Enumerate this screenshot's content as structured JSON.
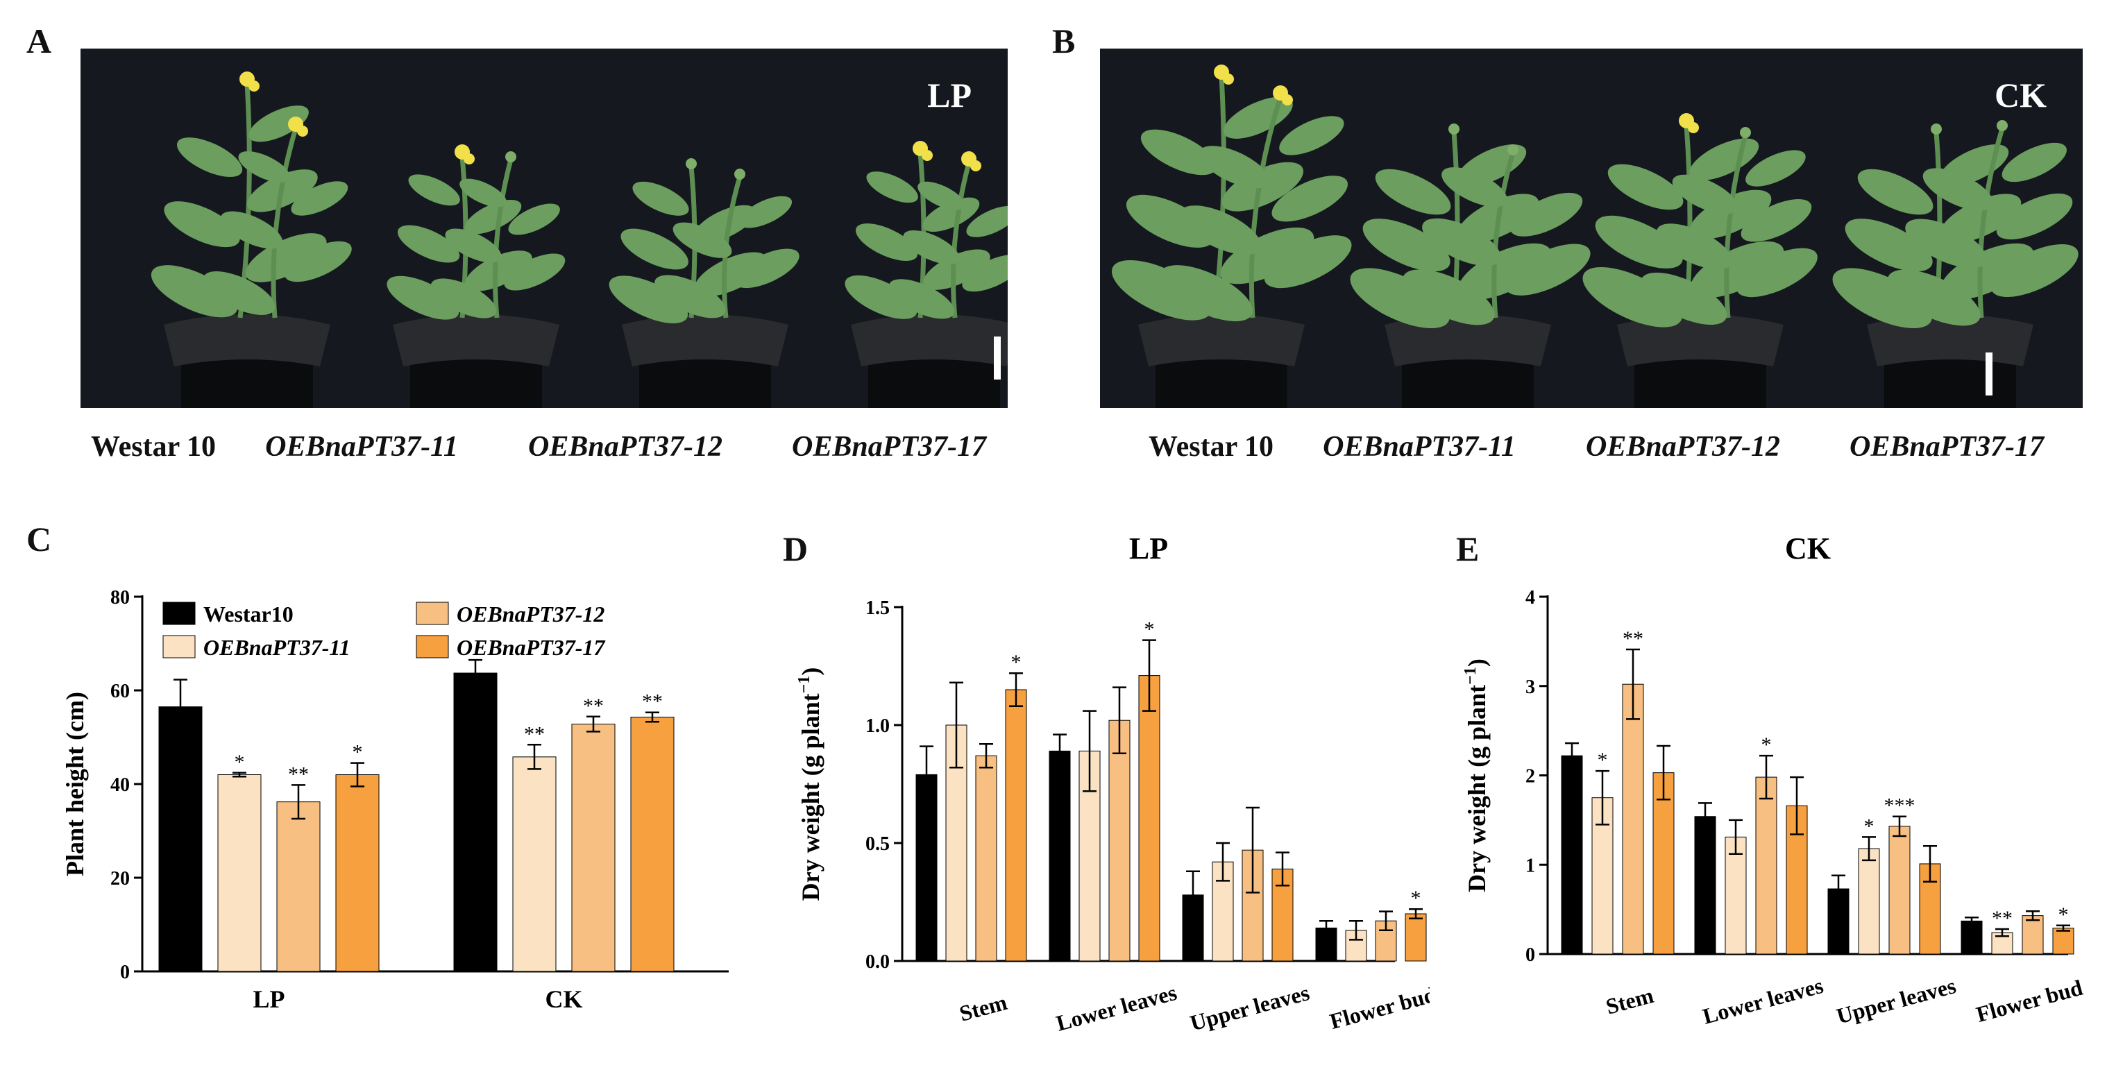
{
  "panels": {
    "a": {
      "letter": "A",
      "condition": "LP"
    },
    "b": {
      "letter": "B",
      "condition": "CK"
    },
    "c": {
      "letter": "C"
    },
    "d": {
      "letter": "D"
    },
    "e": {
      "letter": "E"
    }
  },
  "genotypes": [
    "Westar 10",
    "OEBnaPT37-11",
    "OEBnaPT37-12",
    "OEBnaPT37-17"
  ],
  "colors": {
    "Westar10": "#000000",
    "OEBnaPT37-11": "#fbe2c2",
    "OEBnaPT37-12": "#f8bf82",
    "OEBnaPT37-17": "#f7a03f",
    "photo_background": "#15191f",
    "leaf_green": "#5d8f52",
    "flower_yellow": "#f2e04b"
  },
  "chart_data": [
    {
      "id": "C",
      "type": "bar",
      "categories": [
        "LP",
        "CK"
      ],
      "ylabel": "Plant height (cm)",
      "ylim": [
        0,
        80
      ],
      "yticks": [
        0,
        20,
        40,
        60,
        80
      ],
      "legend": {
        "placement": "top",
        "entries": [
          "Westar10",
          "OEBnaPT37-11",
          "OEBnaPT37-12",
          "OEBnaPT37-17"
        ]
      },
      "series": [
        {
          "name": "Westar10",
          "values": [
            56.5,
            63.7
          ],
          "errors": [
            5.8,
            2.8
          ],
          "sig": [
            "",
            ""
          ]
        },
        {
          "name": "OEBnaPT37-11",
          "values": [
            42.0,
            45.8
          ],
          "errors": [
            0.4,
            2.6
          ],
          "sig": [
            "*",
            "**"
          ]
        },
        {
          "name": "OEBnaPT37-12",
          "values": [
            36.2,
            52.8
          ],
          "errors": [
            3.6,
            1.6
          ],
          "sig": [
            "**",
            "**"
          ]
        },
        {
          "name": "OEBnaPT37-17",
          "values": [
            42.0,
            54.3
          ],
          "errors": [
            2.5,
            1.0
          ],
          "sig": [
            "*",
            "**"
          ]
        }
      ]
    },
    {
      "id": "D",
      "type": "bar",
      "title": "LP",
      "categories": [
        "Stem",
        "Lower leaves",
        "Upper leaves",
        "Flower bud"
      ],
      "ylabel": "Dry weight (g plant−1)",
      "ylim": [
        0,
        1.5
      ],
      "yticks": [
        0.0,
        0.5,
        1.0,
        1.5
      ],
      "series": [
        {
          "name": "Westar10",
          "values": [
            0.79,
            0.89,
            0.28,
            0.14
          ],
          "errors": [
            0.12,
            0.07,
            0.1,
            0.03
          ],
          "sig": [
            "",
            "",
            "",
            ""
          ]
        },
        {
          "name": "OEBnaPT37-11",
          "values": [
            1.0,
            0.89,
            0.42,
            0.13
          ],
          "errors": [
            0.18,
            0.17,
            0.08,
            0.04
          ],
          "sig": [
            "",
            "",
            "",
            ""
          ]
        },
        {
          "name": "OEBnaPT37-12",
          "values": [
            0.87,
            1.02,
            0.47,
            0.17
          ],
          "errors": [
            0.05,
            0.14,
            0.18,
            0.04
          ],
          "sig": [
            "",
            "",
            "",
            ""
          ]
        },
        {
          "name": "OEBnaPT37-17",
          "values": [
            1.15,
            1.21,
            0.39,
            0.2
          ],
          "errors": [
            0.07,
            0.15,
            0.07,
            0.02
          ],
          "sig": [
            "*",
            "*",
            "",
            "*"
          ]
        }
      ]
    },
    {
      "id": "E",
      "type": "bar",
      "title": "CK",
      "categories": [
        "Stem",
        "Lower leaves",
        "Upper leaves",
        "Flower bud"
      ],
      "ylabel": "Dry weight (g plant−1)",
      "ylim": [
        0,
        4
      ],
      "yticks": [
        0,
        1,
        2,
        3,
        4
      ],
      "series": [
        {
          "name": "Westar10",
          "values": [
            2.22,
            1.54,
            0.73,
            0.37
          ],
          "errors": [
            0.14,
            0.15,
            0.15,
            0.04
          ],
          "sig": [
            "",
            "",
            "",
            ""
          ]
        },
        {
          "name": "OEBnaPT37-11",
          "values": [
            1.75,
            1.31,
            1.18,
            0.24
          ],
          "errors": [
            0.3,
            0.19,
            0.13,
            0.04
          ],
          "sig": [
            "*",
            "",
            "*",
            "**"
          ]
        },
        {
          "name": "OEBnaPT37-12",
          "values": [
            3.02,
            1.98,
            1.43,
            0.43
          ],
          "errors": [
            0.39,
            0.24,
            0.11,
            0.05
          ],
          "sig": [
            "**",
            "*",
            "***",
            ""
          ]
        },
        {
          "name": "OEBnaPT37-17",
          "values": [
            2.03,
            1.66,
            1.01,
            0.29
          ],
          "errors": [
            0.3,
            0.32,
            0.2,
            0.03
          ],
          "sig": [
            "",
            "",
            "",
            "*"
          ]
        }
      ]
    }
  ]
}
